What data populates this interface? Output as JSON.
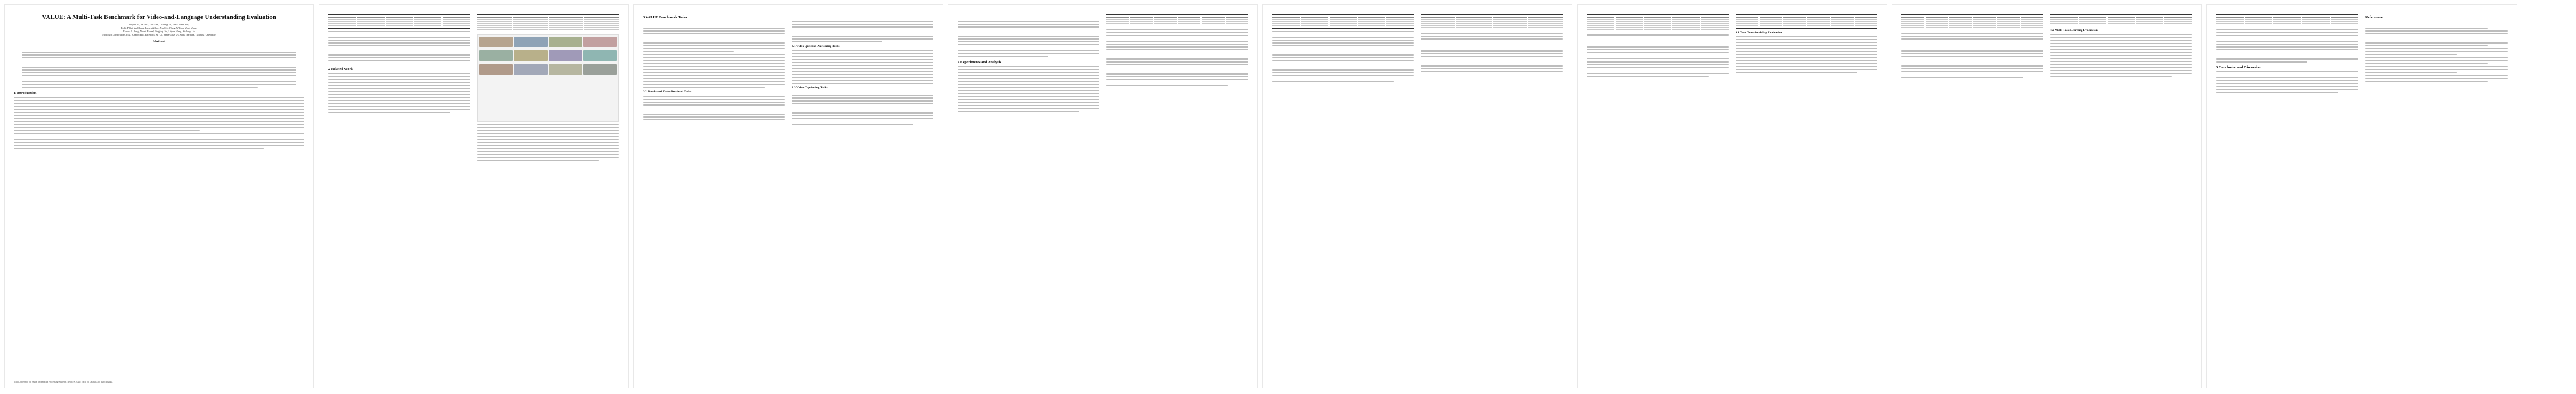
{
  "paper": {
    "title": "VALUE: A Multi-Task Benchmark for Video-and-Language Understanding Evaluation",
    "authors": [
      "Linjie Li*, Jie Lei*, Zhe Gan, Licheng Yu, Yen-Chun Chen,",
      "Rohit Pillai, Yu Cheng, Luowei Zhou, Xin Eric Wang, William Yang Wang,",
      "Tamara L. Berg, Mohit Bansal, Jingjing Liu, Lijuan Wang, Zicheng Liu",
      "Microsoft Corporation, UNC Chapel Hill, Facebook AI, UC Santa Cruz, UC Santa Barbara, Tsinghua University"
    ],
    "abstract_heading": "Abstract",
    "sections": {
      "intro": "1  Introduction",
      "related": "2  Related Work",
      "benchmark": "3  VALUE Benchmark Tasks",
      "tasks_sub": "3.1  Video Question Answering Tasks",
      "retrieval_sub": "3.2  Text-based Video Retrieval Tasks",
      "captioning_sub": "3.3  Video Captioning Tasks",
      "experiments": "4  Experiments and Analysis",
      "transfer_sub": "4.1  Task Transferability Evaluation",
      "multitask_sub": "4.2  Multi-Task Learning Evaluation",
      "conclusion": "5  Conclusion and Discussion",
      "references": "References"
    },
    "footer": "35th Conference on Neural Information Processing Systems (NeurIPS 2021) Track on Datasets and Benchmarks."
  }
}
